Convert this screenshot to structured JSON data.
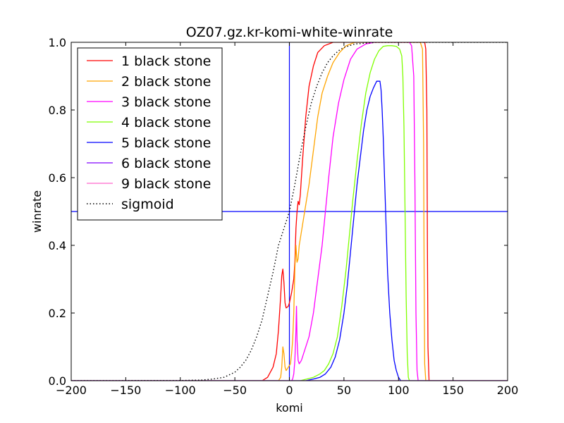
{
  "chart_data": {
    "type": "line",
    "title": "OZ07.gz.kr-komi-white-winrate",
    "xlabel": "komi",
    "ylabel": "winrate",
    "xlim": [
      -200,
      200
    ],
    "ylim": [
      0,
      1
    ],
    "xticks": [
      -200,
      -150,
      -100,
      -50,
      0,
      50,
      100,
      150,
      200
    ],
    "xtick_labels": [
      "−200",
      "−150",
      "−100",
      "−50",
      "0",
      "50",
      "100",
      "150",
      "200"
    ],
    "yticks": [
      0,
      0.2,
      0.4,
      0.6,
      0.8,
      1.0
    ],
    "ytick_labels": [
      "0.0",
      "0.2",
      "0.4",
      "0.6",
      "0.8",
      "1.0"
    ],
    "grid": false,
    "legend_position": "top-left",
    "reference_lines": {
      "vertical_x": 0,
      "horizontal_y": 0.5,
      "color": "#0000ff"
    },
    "series": [
      {
        "name": "1 black stone",
        "color": "#ff0000",
        "style": "solid",
        "points": [
          [
            -200,
            0
          ],
          [
            -25,
            0
          ],
          [
            -20,
            0.01
          ],
          [
            -15,
            0.04
          ],
          [
            -12,
            0.08
          ],
          [
            -10,
            0.15
          ],
          [
            -8,
            0.25
          ],
          [
            -7,
            0.31
          ],
          [
            -6,
            0.33
          ],
          [
            -5,
            0.29
          ],
          [
            -4,
            0.23
          ],
          [
            -3,
            0.215
          ],
          [
            -1,
            0.22
          ],
          [
            0,
            0.23
          ],
          [
            2,
            0.26
          ],
          [
            4,
            0.3
          ],
          [
            5,
            0.35
          ],
          [
            6,
            0.45
          ],
          [
            7,
            0.5
          ],
          [
            8,
            0.53
          ],
          [
            9,
            0.52
          ],
          [
            10,
            0.55
          ],
          [
            12,
            0.65
          ],
          [
            15,
            0.78
          ],
          [
            18,
            0.87
          ],
          [
            22,
            0.93
          ],
          [
            26,
            0.97
          ],
          [
            32,
            0.99
          ],
          [
            40,
            1.0
          ],
          [
            100,
            1.0
          ],
          [
            124,
            1.0
          ],
          [
            125,
            0.98
          ],
          [
            126,
            0.8
          ],
          [
            126.5,
            0.4
          ],
          [
            127,
            0.1
          ],
          [
            128,
            0.0
          ],
          [
            200,
            0
          ]
        ]
      },
      {
        "name": "2 black stone",
        "color": "#ffa500",
        "style": "solid",
        "points": [
          [
            -200,
            0
          ],
          [
            -10,
            0
          ],
          [
            -8,
            0.01
          ],
          [
            -7,
            0.04
          ],
          [
            -6,
            0.1
          ],
          [
            -5,
            0.08
          ],
          [
            -4,
            0.04
          ],
          [
            -3,
            0.03
          ],
          [
            -1,
            0.04
          ],
          [
            1,
            0.05
          ],
          [
            2,
            0.08
          ],
          [
            3,
            0.12
          ],
          [
            4,
            0.2
          ],
          [
            5,
            0.33
          ],
          [
            6,
            0.4
          ],
          [
            7,
            0.35
          ],
          [
            8,
            0.36
          ],
          [
            9,
            0.4
          ],
          [
            11,
            0.44
          ],
          [
            14,
            0.5
          ],
          [
            18,
            0.58
          ],
          [
            22,
            0.68
          ],
          [
            26,
            0.78
          ],
          [
            30,
            0.85
          ],
          [
            35,
            0.9
          ],
          [
            40,
            0.94
          ],
          [
            46,
            0.97
          ],
          [
            52,
            0.99
          ],
          [
            60,
            1.0
          ],
          [
            120,
            1.0
          ],
          [
            122,
            0.98
          ],
          [
            123,
            0.7
          ],
          [
            123.5,
            0.3
          ],
          [
            124,
            0.05
          ],
          [
            125,
            0.0
          ],
          [
            200,
            0
          ]
        ]
      },
      {
        "name": "3 black stone",
        "color": "#ff00ff",
        "style": "solid",
        "points": [
          [
            -200,
            0
          ],
          [
            2,
            0
          ],
          [
            3,
            0.005
          ],
          [
            4,
            0.02
          ],
          [
            5,
            0.06
          ],
          [
            6,
            0.15
          ],
          [
            6.5,
            0.22
          ],
          [
            7,
            0.12
          ],
          [
            8,
            0.06
          ],
          [
            9,
            0.05
          ],
          [
            11,
            0.06
          ],
          [
            14,
            0.09
          ],
          [
            18,
            0.13
          ],
          [
            22,
            0.2
          ],
          [
            26,
            0.3
          ],
          [
            30,
            0.4
          ],
          [
            33,
            0.5
          ],
          [
            36,
            0.6
          ],
          [
            40,
            0.72
          ],
          [
            45,
            0.82
          ],
          [
            50,
            0.89
          ],
          [
            56,
            0.95
          ],
          [
            62,
            0.98
          ],
          [
            70,
            0.995
          ],
          [
            78,
            1.0
          ],
          [
            110,
            1.0
          ],
          [
            112,
            0.99
          ],
          [
            114,
            0.9
          ],
          [
            115,
            0.6
          ],
          [
            116,
            0.2
          ],
          [
            117,
            0.03
          ],
          [
            118,
            0.0
          ],
          [
            200,
            0
          ]
        ]
      },
      {
        "name": "4 black stone",
        "color": "#7fff00",
        "style": "solid",
        "points": [
          [
            -200,
            0
          ],
          [
            10,
            0
          ],
          [
            16,
            0.005
          ],
          [
            22,
            0.01
          ],
          [
            28,
            0.02
          ],
          [
            32,
            0.03
          ],
          [
            36,
            0.05
          ],
          [
            40,
            0.08
          ],
          [
            44,
            0.13
          ],
          [
            48,
            0.22
          ],
          [
            52,
            0.33
          ],
          [
            55,
            0.43
          ],
          [
            58,
            0.53
          ],
          [
            62,
            0.65
          ],
          [
            66,
            0.76
          ],
          [
            70,
            0.85
          ],
          [
            74,
            0.91
          ],
          [
            78,
            0.95
          ],
          [
            82,
            0.975
          ],
          [
            86,
            0.988
          ],
          [
            90,
            0.99
          ],
          [
            94,
            0.99
          ],
          [
            98,
            0.988
          ],
          [
            101,
            0.98
          ],
          [
            103,
            0.96
          ],
          [
            104,
            0.9
          ],
          [
            105,
            0.75
          ],
          [
            106,
            0.5
          ],
          [
            107,
            0.25
          ],
          [
            108,
            0.08
          ],
          [
            109,
            0.01
          ],
          [
            110,
            0.0
          ],
          [
            200,
            0
          ]
        ]
      },
      {
        "name": "5 black stone",
        "color": "#0000ff",
        "style": "solid",
        "points": [
          [
            -200,
            0
          ],
          [
            15,
            0
          ],
          [
            22,
            0.005
          ],
          [
            28,
            0.01
          ],
          [
            33,
            0.02
          ],
          [
            38,
            0.04
          ],
          [
            42,
            0.07
          ],
          [
            46,
            0.12
          ],
          [
            50,
            0.2
          ],
          [
            53,
            0.28
          ],
          [
            56,
            0.38
          ],
          [
            59,
            0.48
          ],
          [
            62,
            0.58
          ],
          [
            65,
            0.66
          ],
          [
            68,
            0.74
          ],
          [
            71,
            0.8
          ],
          [
            74,
            0.84
          ],
          [
            77,
            0.865
          ],
          [
            80,
            0.885
          ],
          [
            83,
            0.885
          ],
          [
            84,
            0.86
          ],
          [
            85,
            0.8
          ],
          [
            86,
            0.72
          ],
          [
            87,
            0.62
          ],
          [
            88,
            0.52
          ],
          [
            89,
            0.42
          ],
          [
            90,
            0.32
          ],
          [
            92,
            0.2
          ],
          [
            94,
            0.12
          ],
          [
            96,
            0.06
          ],
          [
            98,
            0.03
          ],
          [
            100,
            0.01
          ],
          [
            102,
            0.0
          ],
          [
            200,
            0
          ]
        ]
      },
      {
        "name": "6 black stone",
        "color": "#8000ff",
        "style": "solid",
        "points": [
          [
            -200,
            0
          ],
          [
            200,
            0
          ]
        ]
      },
      {
        "name": "9 black stone",
        "color": "#ff66cc",
        "style": "solid",
        "points": [
          [
            -200,
            0
          ],
          [
            200,
            0
          ]
        ]
      },
      {
        "name": "sigmoid",
        "color": "#000000",
        "style": "dotted",
        "points": [
          [
            -200,
            0
          ],
          [
            -100,
            0.0005
          ],
          [
            -80,
            0.002
          ],
          [
            -70,
            0.005
          ],
          [
            -60,
            0.01
          ],
          [
            -50,
            0.025
          ],
          [
            -45,
            0.04
          ],
          [
            -40,
            0.06
          ],
          [
            -35,
            0.09
          ],
          [
            -30,
            0.13
          ],
          [
            -25,
            0.18
          ],
          [
            -20,
            0.25
          ],
          [
            -15,
            0.32
          ],
          [
            -10,
            0.4
          ],
          [
            -5,
            0.45
          ],
          [
            0,
            0.5
          ],
          [
            5,
            0.58
          ],
          [
            10,
            0.67
          ],
          [
            15,
            0.75
          ],
          [
            20,
            0.82
          ],
          [
            25,
            0.87
          ],
          [
            30,
            0.91
          ],
          [
            35,
            0.94
          ],
          [
            40,
            0.96
          ],
          [
            45,
            0.975
          ],
          [
            50,
            0.985
          ],
          [
            60,
            0.995
          ],
          [
            80,
            1.0
          ],
          [
            200,
            1.0
          ]
        ]
      }
    ]
  }
}
